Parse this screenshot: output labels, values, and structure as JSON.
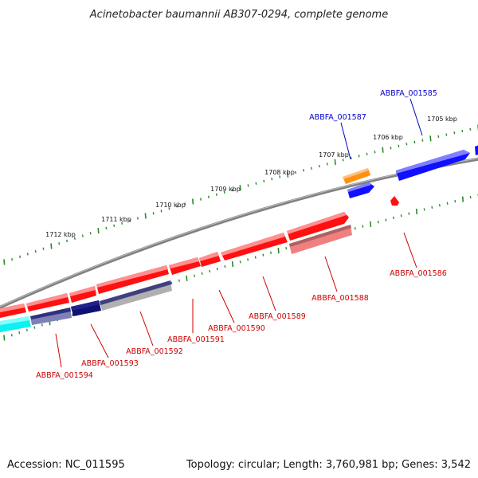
{
  "title": "Acinetobacter baumannii AB307-0294, complete genome",
  "footer": {
    "accession": "Accession: NC_011595",
    "summary": "Topology: circular; Length: 3,760,981 bp; Genes: 3,542"
  },
  "colors": {
    "backbone": "#808080",
    "tick": "#2a8a2a",
    "forward_label": "#0000cc",
    "reverse_label": "#cc0000",
    "red": "#ff1010",
    "blue": "#1010ff",
    "orange": "#ff9010",
    "navy": "#101070",
    "cyan": "#10f0f0",
    "pink": "#f08080",
    "lavender": "#8080b8",
    "gray": "#b0b0b0"
  },
  "kbp_labels": [
    {
      "text": "1705 kbp",
      "pos": 1705
    },
    {
      "text": "1706 kbp",
      "pos": 1706
    },
    {
      "text": "1707 kbp",
      "pos": 1707
    },
    {
      "text": "1708 kbp",
      "pos": 1708
    },
    {
      "text": "1709 kbp",
      "pos": 1709
    },
    {
      "text": "1710 kbp",
      "pos": 1710
    },
    {
      "text": "1711 kbp",
      "pos": 1711
    },
    {
      "text": "1712 kbp",
      "pos": 1712
    }
  ],
  "gene_labels": [
    {
      "text": "ABBFA_001585",
      "strand": "forward"
    },
    {
      "text": "ABBFA_001587",
      "strand": "forward"
    },
    {
      "text": "ABBFA_001586",
      "strand": "reverse"
    },
    {
      "text": "ABBFA_001588",
      "strand": "reverse"
    },
    {
      "text": "ABBFA_001589",
      "strand": "reverse"
    },
    {
      "text": "ABBFA_001590",
      "strand": "reverse"
    },
    {
      "text": "ABBFA_001591",
      "strand": "reverse"
    },
    {
      "text": "ABBFA_001592",
      "strand": "reverse"
    },
    {
      "text": "ABBFA_001593",
      "strand": "reverse"
    },
    {
      "text": "ABBFA_001594",
      "strand": "reverse"
    }
  ]
}
